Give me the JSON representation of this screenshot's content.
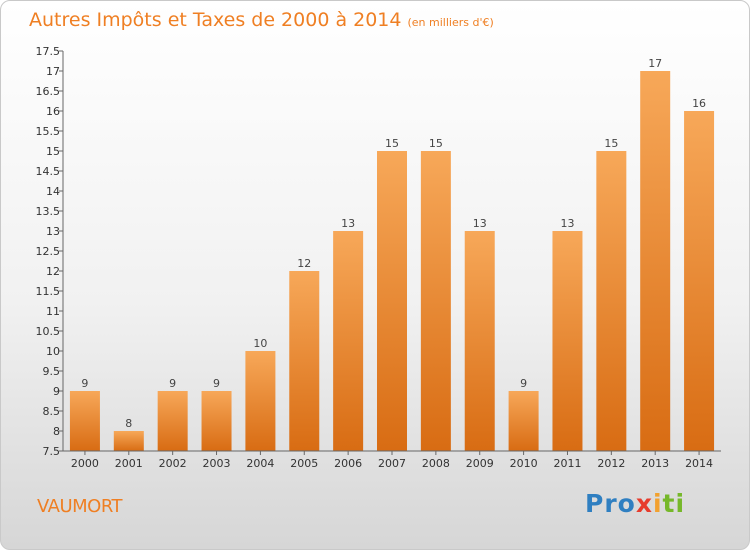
{
  "title": "Autres Impôts et Taxes de 2000 à 2014",
  "subtitle": "(en milliers d'€)",
  "commune": "VAUMORT",
  "logo": "Proxiti",
  "colors": {
    "accent": "#ef7f23",
    "bar_light": "#f7a859",
    "bar_dark": "#d86c13"
  },
  "chart_data": {
    "type": "bar",
    "title": "Autres Impôts et Taxes de 2000 à 2014",
    "subtitle": "(en milliers d'€)",
    "categories": [
      "2000",
      "2001",
      "2002",
      "2003",
      "2004",
      "2005",
      "2006",
      "2007",
      "2008",
      "2009",
      "2010",
      "2011",
      "2012",
      "2013",
      "2014"
    ],
    "values": [
      9,
      8,
      9,
      9,
      10,
      12,
      13,
      15,
      15,
      13,
      9,
      13,
      15,
      17,
      16
    ],
    "ylim": [
      7.5,
      17.5
    ],
    "ytick_step": 0.5,
    "ytick_labels": [
      "7.5",
      "8",
      "8.5",
      "9",
      "9.5",
      "10",
      "10.5",
      "11",
      "11.5",
      "12",
      "12.5",
      "13",
      "13.5",
      "14",
      "14.5",
      "15",
      "15.5",
      "16",
      "16.5",
      "17",
      "17.5"
    ],
    "grid": false,
    "data_labels": true
  }
}
